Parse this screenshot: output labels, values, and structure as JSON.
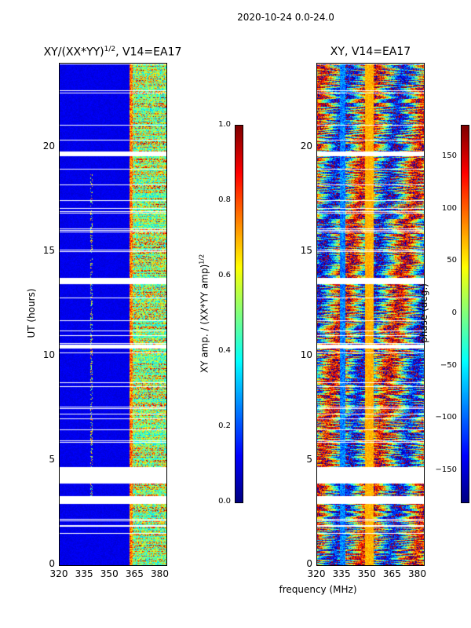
{
  "figure": {
    "suptitle": "2020-10-24 0.0-24.0",
    "shared_xlabel": "frequency (MHz)"
  },
  "chart_data": [
    {
      "type": "heatmap",
      "title": "XY/(XX*YY)",
      "title_sup": "1/2",
      "title_suffix": ", V14=EA17",
      "xlabel": "frequency (MHz)",
      "ylabel": "UT (hours)",
      "xlim": [
        320,
        383.5
      ],
      "ylim": [
        0,
        24
      ],
      "xticks": [
        "320",
        "335",
        "350",
        "365",
        "380"
      ],
      "xtick_values": [
        320,
        335,
        350,
        365,
        380
      ],
      "yticks": [
        "0",
        "5",
        "10",
        "15",
        "20"
      ],
      "ytick_values": [
        0,
        5,
        10,
        15,
        20
      ],
      "colorbar": {
        "label": "XY amp. / (XX*YY amp)",
        "label_sup": "1/2",
        "range": [
          0.0,
          1.0
        ],
        "ticks": [
          "0.0",
          "0.2",
          "0.4",
          "0.6",
          "0.8",
          "1.0"
        ],
        "tick_values": [
          0,
          0.2,
          0.4,
          0.6,
          0.8,
          1.0
        ],
        "colormap": "jet"
      }
    },
    {
      "type": "heatmap",
      "title": "XY, V14=EA17",
      "xlabel": "frequency (MHz)",
      "ylabel": "",
      "xlim": [
        320,
        383.5
      ],
      "ylim": [
        0,
        24
      ],
      "xticks": [
        "320",
        "335",
        "350",
        "365",
        "380"
      ],
      "xtick_values": [
        320,
        335,
        350,
        365,
        380
      ],
      "yticks": [
        "0",
        "5",
        "10",
        "15",
        "20"
      ],
      "ytick_values": [
        0,
        5,
        10,
        15,
        20
      ],
      "colorbar": {
        "label": "phase (deg.)",
        "range": [
          -180,
          180
        ],
        "ticks": [
          "−150",
          "−100",
          "−50",
          "0",
          "50",
          "100",
          "150"
        ],
        "tick_values": [
          -150,
          -100,
          -50,
          0,
          50,
          100,
          150
        ],
        "colormap": "jet"
      }
    }
  ],
  "flagged_hours": [
    [
      3.0,
      3.3
    ],
    [
      4.0,
      4.7
    ],
    [
      10.4,
      10.5
    ],
    [
      13.5,
      13.7
    ],
    [
      19.6,
      19.8
    ]
  ]
}
